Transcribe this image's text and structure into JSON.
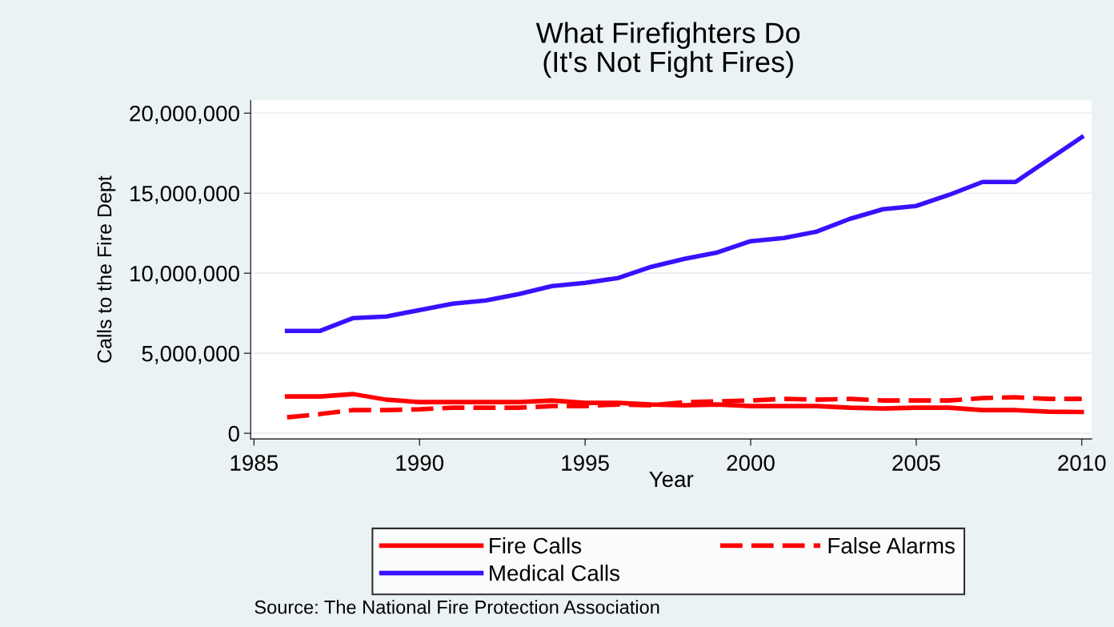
{
  "chart_data": {
    "type": "line",
    "title": "What Firefighters Do\n(It's Not Fight Fires)",
    "xlabel": "Year",
    "ylabel": "Calls to the Fire Dept",
    "x": [
      1986,
      1987,
      1988,
      1989,
      1990,
      1991,
      1992,
      1993,
      1994,
      1995,
      1996,
      1997,
      1998,
      1999,
      2000,
      2001,
      2002,
      2003,
      2004,
      2005,
      2006,
      2007,
      2008,
      2009,
      2010
    ],
    "series": [
      {
        "name": "Fire Calls",
        "color": "#ff0000",
        "line_style": "solid",
        "values": [
          2300000,
          2300000,
          2450000,
          2100000,
          1950000,
          1950000,
          1950000,
          1950000,
          2050000,
          1900000,
          1900000,
          1800000,
          1750000,
          1800000,
          1700000,
          1700000,
          1700000,
          1600000,
          1550000,
          1600000,
          1600000,
          1450000,
          1450000,
          1350000,
          1330000
        ]
      },
      {
        "name": "False Alarms",
        "color": "#ff0000",
        "line_style": "dashed",
        "values": [
          1000000,
          1200000,
          1450000,
          1450000,
          1500000,
          1600000,
          1600000,
          1600000,
          1700000,
          1700000,
          1800000,
          1750000,
          1950000,
          2000000,
          2050000,
          2150000,
          2100000,
          2150000,
          2050000,
          2050000,
          2050000,
          2200000,
          2250000,
          2150000,
          2150000
        ]
      },
      {
        "name": "Medical Calls",
        "color": "#3a10ff",
        "line_style": "solid",
        "values": [
          6400000,
          6400000,
          7200000,
          7300000,
          7700000,
          8100000,
          8300000,
          8700000,
          9200000,
          9400000,
          9700000,
          10400000,
          10900000,
          11300000,
          12000000,
          12200000,
          12600000,
          13400000,
          14000000,
          14200000,
          14900000,
          15700000,
          15700000,
          17100000,
          18500000
        ]
      }
    ],
    "xlim": [
      1984.9,
      2010.3
    ],
    "xticks": [
      1985,
      1990,
      1995,
      2000,
      2005,
      2010
    ],
    "ylim": [
      -350000,
      20800000
    ],
    "yticks": [
      {
        "value": 0,
        "label": "0"
      },
      {
        "value": 5000000,
        "label": "5,000,000"
      },
      {
        "value": 10000000,
        "label": "10,000,000"
      },
      {
        "value": 15000000,
        "label": "15,000,000"
      },
      {
        "value": 20000000,
        "label": "20,000,000"
      }
    ],
    "grid": "y",
    "legend": "bottom",
    "marker": "none",
    "annotations": [
      "Source: The National Fire Protection Association"
    ]
  }
}
